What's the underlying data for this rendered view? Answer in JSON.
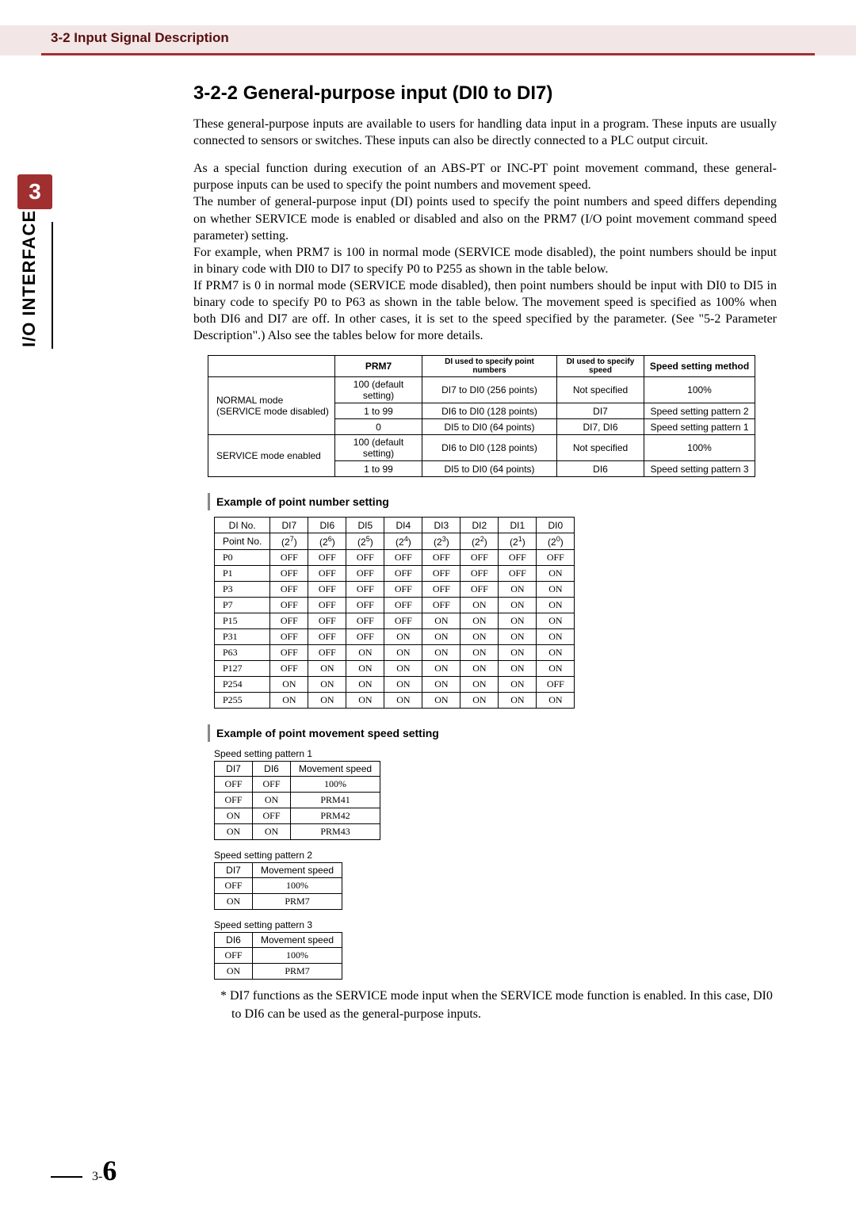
{
  "header": {
    "title": "3-2 Input Signal Description"
  },
  "chapter": {
    "number": "3",
    "side_label": "I/O INTERFACE"
  },
  "section": {
    "heading": "3-2-2  General-purpose input (DI0 to DI7)",
    "p1": "These general-purpose inputs are available to users for handling data input in a program. These inputs are usually connected to sensors or switches. These inputs can also be directly connected to a PLC output circuit.",
    "p2": "As a special function during execution of an ABS-PT or INC-PT point movement command, these general- purpose inputs can be used to specify the point numbers and movement speed.",
    "p3": "The number of general-purpose input (DI) points used to specify the point numbers and speed differs depending on whether SERVICE mode is enabled or disabled and also on the PRM7 (I/O point movement command speed parameter) setting.",
    "p4": "For example, when PRM7 is 100 in normal mode (SERVICE mode disabled), the point numbers should be input in binary code with DI0 to DI7 to specify P0 to P255 as shown in the table below.",
    "p5": "If PRM7 is 0 in normal mode (SERVICE mode disabled), then point numbers should be input with DI0 to DI5 in binary code to specify P0 to P63 as shown in the table below. The movement speed is specified as 100% when both DI6 and DI7 are off. In other cases, it is set to the speed specified by the parameter. (See \"5-2 Parameter Description\".) Also see the tables below for more details."
  },
  "main_table": {
    "headers": [
      "",
      "PRM7",
      "DI used to specify point numbers",
      "DI used to specify speed",
      "Speed setting method"
    ],
    "rows": [
      {
        "mode": "NORMAL mode\n(SERVICE mode disabled)",
        "prm7": "100 (default setting)",
        "di_pts": "DI7 to DI0 (256 points)",
        "di_spd": "Not specified",
        "method": "100%"
      },
      {
        "prm7": "1 to 99",
        "di_pts": "DI6 to DI0 (128 points)",
        "di_spd": "DI7",
        "method": "Speed setting pattern 2"
      },
      {
        "prm7": "0",
        "di_pts": "DI5 to DI0 (64 points)",
        "di_spd": "DI7, DI6",
        "method": "Speed setting pattern 1"
      },
      {
        "mode": "SERVICE mode enabled",
        "prm7": "100 (default setting)",
        "di_pts": "DI6 to DI0 (128 points)",
        "di_spd": "Not specified",
        "method": "100%"
      },
      {
        "prm7": "1 to 99",
        "di_pts": "DI5 to DI0 (64 points)",
        "di_spd": "DI6",
        "method": "Speed setting pattern 3"
      }
    ]
  },
  "sub1": {
    "title": "Example of point number setting"
  },
  "point_table": {
    "h1": [
      "DI No.",
      "DI7",
      "DI6",
      "DI5",
      "DI4",
      "DI3",
      "DI2",
      "DI1",
      "DI0"
    ],
    "h2_label": "Point No.",
    "h2_exp": [
      "7",
      "6",
      "5",
      "4",
      "3",
      "2",
      "1",
      "0"
    ],
    "rows": [
      {
        "p": "P0",
        "v": [
          "OFF",
          "OFF",
          "OFF",
          "OFF",
          "OFF",
          "OFF",
          "OFF",
          "OFF"
        ]
      },
      {
        "p": "P1",
        "v": [
          "OFF",
          "OFF",
          "OFF",
          "OFF",
          "OFF",
          "OFF",
          "OFF",
          "ON"
        ]
      },
      {
        "p": "P3",
        "v": [
          "OFF",
          "OFF",
          "OFF",
          "OFF",
          "OFF",
          "OFF",
          "ON",
          "ON"
        ]
      },
      {
        "p": "P7",
        "v": [
          "OFF",
          "OFF",
          "OFF",
          "OFF",
          "OFF",
          "ON",
          "ON",
          "ON"
        ]
      },
      {
        "p": "P15",
        "v": [
          "OFF",
          "OFF",
          "OFF",
          "OFF",
          "ON",
          "ON",
          "ON",
          "ON"
        ]
      },
      {
        "p": "P31",
        "v": [
          "OFF",
          "OFF",
          "OFF",
          "ON",
          "ON",
          "ON",
          "ON",
          "ON"
        ]
      },
      {
        "p": "P63",
        "v": [
          "OFF",
          "OFF",
          "ON",
          "ON",
          "ON",
          "ON",
          "ON",
          "ON"
        ]
      },
      {
        "p": "P127",
        "v": [
          "OFF",
          "ON",
          "ON",
          "ON",
          "ON",
          "ON",
          "ON",
          "ON"
        ]
      },
      {
        "p": "P254",
        "v": [
          "ON",
          "ON",
          "ON",
          "ON",
          "ON",
          "ON",
          "ON",
          "OFF"
        ]
      },
      {
        "p": "P255",
        "v": [
          "ON",
          "ON",
          "ON",
          "ON",
          "ON",
          "ON",
          "ON",
          "ON"
        ]
      }
    ]
  },
  "sub2": {
    "title": "Example of point movement speed setting"
  },
  "speed1": {
    "caption": "Speed setting pattern 1",
    "headers": [
      "DI7",
      "DI6",
      "Movement speed"
    ],
    "rows": [
      [
        "OFF",
        "OFF",
        "100%"
      ],
      [
        "OFF",
        "ON",
        "PRM41"
      ],
      [
        "ON",
        "OFF",
        "PRM42"
      ],
      [
        "ON",
        "ON",
        "PRM43"
      ]
    ]
  },
  "speed2": {
    "caption": "Speed setting pattern 2",
    "headers": [
      "DI7",
      "Movement speed"
    ],
    "rows": [
      [
        "OFF",
        "100%"
      ],
      [
        "ON",
        "PRM7"
      ]
    ]
  },
  "speed3": {
    "caption": "Speed setting pattern 3",
    "headers": [
      "DI6",
      "Movement speed"
    ],
    "rows": [
      [
        "OFF",
        "100%"
      ],
      [
        "ON",
        "PRM7"
      ]
    ]
  },
  "footnote": "*  DI7 functions as the SERVICE mode input when the SERVICE mode function is enabled. In this case, DI0 to DI6 can be used as the general-purpose inputs.",
  "page_number": {
    "prefix": "3-",
    "num": "6"
  },
  "colors": {
    "accent": "#a03030",
    "band": "#f2e6e6"
  }
}
